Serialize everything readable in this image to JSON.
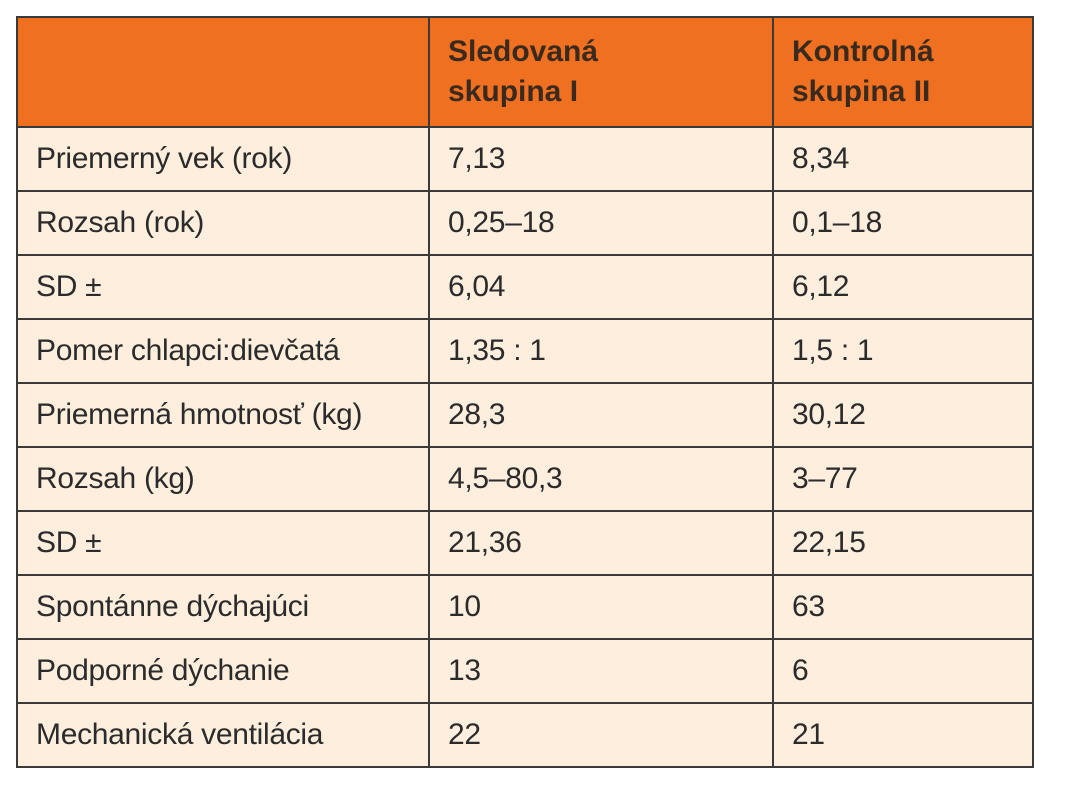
{
  "table": {
    "headers": [
      "",
      [
        "Sledovaná",
        "skupina I"
      ],
      [
        "Kontrolná",
        "skupina II"
      ]
    ],
    "rows": [
      [
        "Priemerný vek (rok)",
        "7,13",
        "8,34"
      ],
      [
        "Rozsah (rok)",
        "0,25–18",
        "0,1–18"
      ],
      [
        "SD ±",
        "6,04",
        "6,12"
      ],
      [
        "Pomer chlapci:dievčatá",
        "1,35 : 1",
        "1,5 : 1"
      ],
      [
        "Priemerná hmotnosť (kg)",
        "28,3",
        "30,12"
      ],
      [
        "Rozsah (kg)",
        "4,5–80,3",
        "3–77"
      ],
      [
        "SD ±",
        "21,36",
        "22,15"
      ],
      [
        "Spontánne dýchajúci",
        "10",
        "63"
      ],
      [
        "Podporné dýchanie",
        "13",
        "6"
      ],
      [
        "Mechanická ventilácia",
        "22",
        "21"
      ]
    ]
  },
  "colors": {
    "header_bg": "#f07022",
    "row_bg": "#fdeedd",
    "border": "#3a3a3a"
  }
}
